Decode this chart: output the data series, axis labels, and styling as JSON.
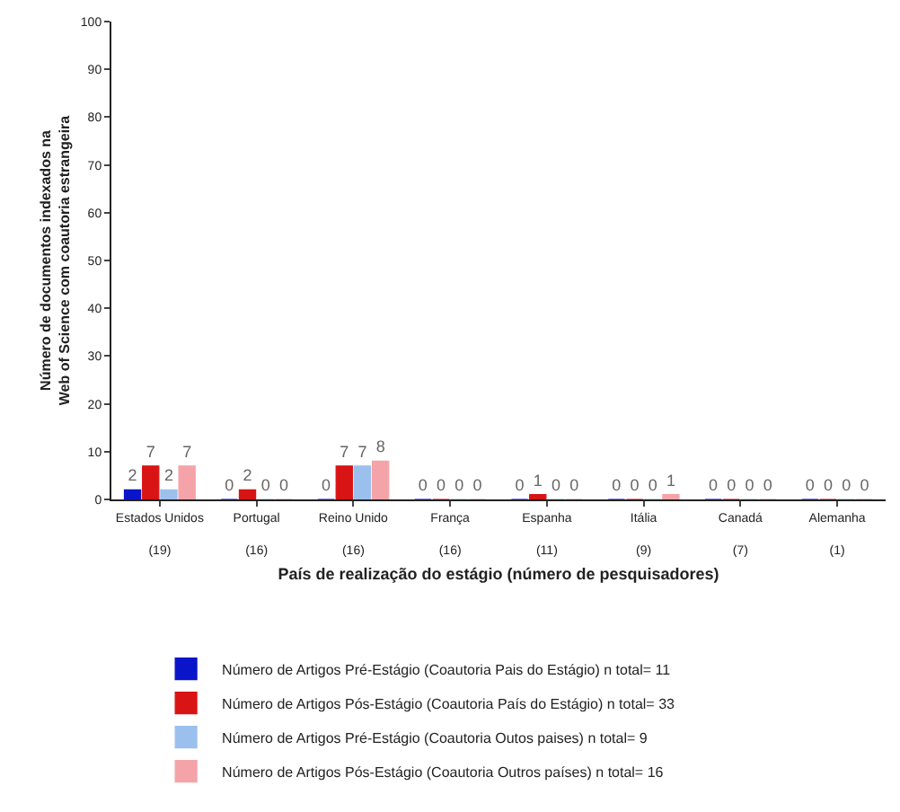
{
  "chart_data": {
    "type": "bar",
    "categories": [
      "Estados Unidos\n(19)",
      "Portugal\n(16)",
      "Reino Unido\n(16)",
      "França\n(16)",
      "Espanha\n(11)",
      "Itália\n(9)",
      "Canadá\n(7)",
      "Alemanha\n(1)"
    ],
    "series": [
      {
        "name": "Número de Artigos Pré-Estágio (Coautoria Pais do Estágio) n total= 11",
        "color": "#0a14c8",
        "values": [
          2,
          0,
          0,
          0,
          0,
          0,
          0,
          0
        ]
      },
      {
        "name": "Número de Artigos Pós-Estágio (Coautoria País do Estágio) n total= 33",
        "color": "#d81414",
        "values": [
          7,
          2,
          7,
          0,
          1,
          0,
          0,
          0
        ]
      },
      {
        "name": "Número de Artigos Pré-Estágio (Coautoria Outos paises) n total= 9",
        "color": "#9cc0ee",
        "values": [
          2,
          0,
          7,
          0,
          0,
          0,
          0,
          0
        ]
      },
      {
        "name": "Número de Artigos Pós-Estágio (Coautoria Outros países) n total= 16",
        "color": "#f4a4a8",
        "values": [
          7,
          0,
          8,
          0,
          0,
          1,
          0,
          0
        ]
      }
    ],
    "xlabel": "País de realização do estágio (número de pesquisadores)",
    "ylabel": "Número de documentos indexados na\nWeb of Science com coautoria estrangeira",
    "ylim": [
      0,
      100
    ],
    "yticks": [
      0,
      10,
      20,
      30,
      40,
      50,
      60,
      70,
      80,
      90,
      100
    ],
    "grid": false,
    "legend": "bottom",
    "data_labels": true
  }
}
